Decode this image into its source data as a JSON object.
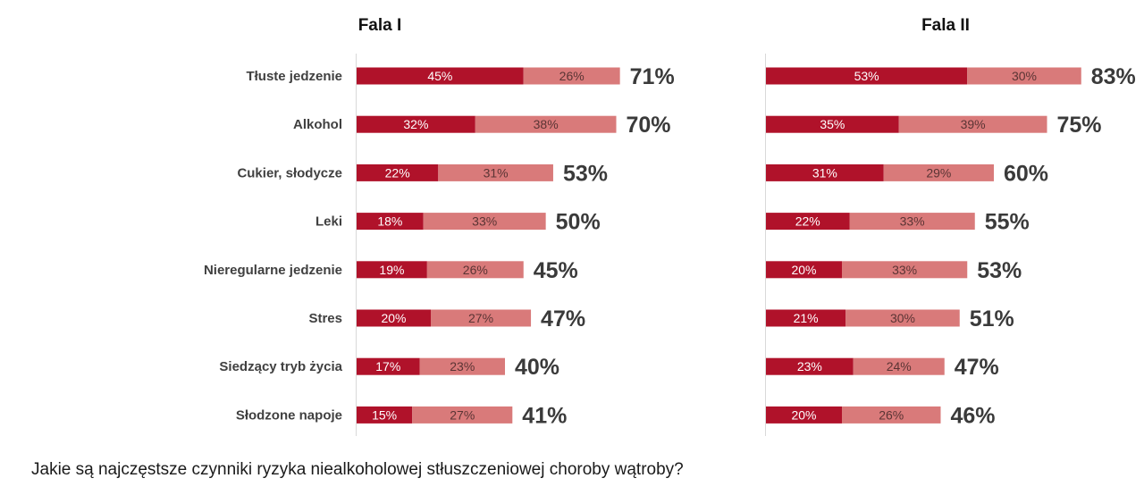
{
  "colors": {
    "dark": "#b0122a",
    "light": "#d97a7a",
    "total": "#3a3a3a",
    "label": "#404040"
  },
  "question": "Jakie są najczęstsze czynniki ryzyka niealkoholowej stłuszczeniowej choroby wątroby?",
  "chart_data": [
    {
      "type": "bar",
      "orientation": "horizontal",
      "stacked": true,
      "title": "Fala I",
      "categories": [
        "Tłuste jedzenie",
        "Alkohol",
        "Cukier, słodycze",
        "Leki",
        "Nieregularne jedzenie",
        "Stres",
        "Siedzący tryb życia",
        "Słodzone napoje"
      ],
      "series": [
        {
          "values": [
            45,
            32,
            22,
            18,
            19,
            20,
            17,
            15
          ],
          "labels": [
            "45%",
            "32%",
            "22%",
            "18%",
            "19%",
            "20%",
            "17%",
            "15%"
          ]
        },
        {
          "values": [
            26,
            38,
            31,
            33,
            26,
            27,
            23,
            27
          ],
          "labels": [
            "26%",
            "38%",
            "31%",
            "33%",
            "26%",
            "27%",
            "23%",
            "27%"
          ]
        }
      ],
      "totals": [
        "71%",
        "70%",
        "53%",
        "50%",
        "45%",
        "47%",
        "40%",
        "41%"
      ]
    },
    {
      "type": "bar",
      "orientation": "horizontal",
      "stacked": true,
      "title": "Fala II",
      "categories": [
        "Tłuste jedzenie",
        "Alkohol",
        "Cukier, słodycze",
        "Leki",
        "Nieregularne jedzenie",
        "Stres",
        "Siedzący tryb życia",
        "Słodzone napoje"
      ],
      "series": [
        {
          "values": [
            53,
            35,
            31,
            22,
            20,
            21,
            23,
            20
          ],
          "labels": [
            "53%",
            "35%",
            "31%",
            "22%",
            "20%",
            "21%",
            "23%",
            "20%"
          ]
        },
        {
          "values": [
            30,
            39,
            29,
            33,
            33,
            30,
            24,
            26
          ],
          "labels": [
            "30%",
            "39%",
            "29%",
            "33%",
            "33%",
            "30%",
            "24%",
            "26%"
          ]
        }
      ],
      "totals": [
        "83%",
        "75%",
        "60%",
        "55%",
        "53%",
        "51%",
        "47%",
        "46%"
      ]
    }
  ]
}
